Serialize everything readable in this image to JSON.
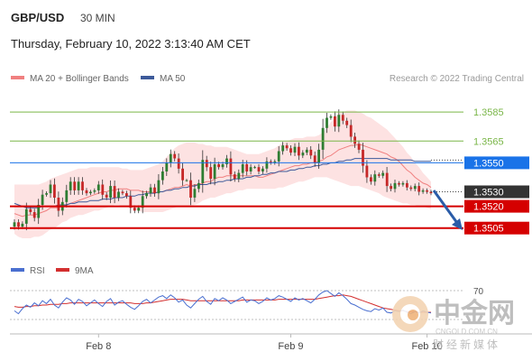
{
  "header": {
    "symbol": "GBP/USD",
    "timeframe": "30 MIN",
    "datetime": "Thursday, February 10, 2022 3:13:40 AM CET"
  },
  "legend": {
    "ma20_bb": "MA 20 + Bollinger Bands",
    "ma50": "MA 50",
    "rsi": "RSI",
    "rsi_ma": "9MA"
  },
  "credit": "Research © 2022 Trading Central",
  "watermark": {
    "name": "中金网",
    "url": "CNGOLD.COM.CN",
    "tagline": "财经新媒体"
  },
  "colors": {
    "ma20": "#f08080",
    "band_fill": "#fde2e2",
    "ma50": "#3d5a9a",
    "up": "#2e7d32",
    "down": "#c62828",
    "resistance": "#7ab648",
    "pivot": "#1a73e8",
    "support": "#d50000",
    "current": "#333333",
    "arrow": "#2a5ca8",
    "rsi": "#4a6fd0",
    "rsi_ma": "#d32f2f"
  },
  "chart_data": {
    "type": "candlestick",
    "interval": "30 MIN",
    "ylim": [
      1.3493,
      1.36
    ],
    "x_tick_labels": [
      "Feb 8",
      "Feb 9",
      "Feb 10"
    ],
    "levels": [
      {
        "value": 1.3585,
        "label": "1.3585",
        "kind": "resistance"
      },
      {
        "value": 1.3565,
        "label": "1.3565",
        "kind": "resistance"
      },
      {
        "value": 1.355,
        "label": "1.3550",
        "kind": "pivot"
      },
      {
        "value": 1.353,
        "label": "1.3530",
        "kind": "current"
      },
      {
        "value": 1.352,
        "label": "1.3520",
        "kind": "support"
      },
      {
        "value": 1.3505,
        "label": "1.3505",
        "kind": "support"
      }
    ],
    "close": [
      1.3509,
      1.3506,
      1.3508,
      1.3518,
      1.3516,
      1.3512,
      1.3521,
      1.3528,
      1.3529,
      1.3535,
      1.3526,
      1.3517,
      1.3523,
      1.3531,
      1.3537,
      1.3531,
      1.3537,
      1.3531,
      1.3529,
      1.353,
      1.3531,
      1.3535,
      1.3528,
      1.3526,
      1.3534,
      1.3526,
      1.353,
      1.3529,
      1.3527,
      1.3519,
      1.3517,
      1.3519,
      1.3527,
      1.3529,
      1.3533,
      1.3529,
      1.3538,
      1.3544,
      1.355,
      1.3556,
      1.3553,
      1.3546,
      1.3538,
      1.3538,
      1.3526,
      1.3532,
      1.3536,
      1.3552,
      1.3547,
      1.3539,
      1.3549,
      1.3547,
      1.3549,
      1.3553,
      1.3542,
      1.3539,
      1.3543,
      1.3549,
      1.3544,
      1.3547,
      1.3547,
      1.3544,
      1.3546,
      1.3551,
      1.355,
      1.3551,
      1.3558,
      1.3562,
      1.356,
      1.3557,
      1.3561,
      1.3555,
      1.3557,
      1.3559,
      1.3555,
      1.355,
      1.3559,
      1.3574,
      1.3581,
      1.3582,
      1.3575,
      1.3583,
      1.3579,
      1.3576,
      1.3568,
      1.3563,
      1.3559,
      1.3548,
      1.354,
      1.3537,
      1.3542,
      1.3541,
      1.3543,
      1.3534,
      1.3532,
      1.3536,
      1.3535,
      1.3536,
      1.3533,
      1.3532,
      1.3534,
      1.353,
      1.3531,
      1.353,
      1.3529
    ],
    "ma20": [
      1.3515,
      1.3514,
      1.3513,
      1.3514,
      1.3514,
      1.3514,
      1.3515,
      1.3516,
      1.3517,
      1.3519,
      1.3519,
      1.3519,
      1.352,
      1.3521,
      1.3522,
      1.3523,
      1.3524,
      1.3525,
      1.3526,
      1.3527,
      1.3528,
      1.3529,
      1.353,
      1.353,
      1.3531,
      1.3531,
      1.3532,
      1.3532,
      1.3532,
      1.3531,
      1.3531,
      1.3531,
      1.353,
      1.353,
      1.353,
      1.3529,
      1.353,
      1.353,
      1.3531,
      1.3532,
      1.3533,
      1.3533,
      1.3534,
      1.3535,
      1.3534,
      1.3535,
      1.3535,
      1.3536,
      1.3537,
      1.3537,
      1.3539,
      1.354,
      1.354,
      1.3541,
      1.3541,
      1.3541,
      1.3541,
      1.3541,
      1.3541,
      1.3541,
      1.3541,
      1.354,
      1.354,
      1.3541,
      1.3542,
      1.3543,
      1.3544,
      1.3545,
      1.3546,
      1.3547,
      1.3548,
      1.3548,
      1.3549,
      1.3549,
      1.355,
      1.355,
      1.3551,
      1.3552,
      1.3554,
      1.3555,
      1.3557,
      1.3559,
      1.356,
      1.3561,
      1.3562,
      1.3562,
      1.3563,
      1.3562,
      1.3561,
      1.356,
      1.3559,
      1.3558,
      1.3557,
      1.3556,
      1.3554,
      1.3553,
      1.3551,
      1.3548,
      1.3545,
      1.3543,
      1.354,
      1.3538,
      1.3536,
      1.3535,
      1.3533
    ],
    "bb_upper": [
      1.3535,
      1.3535,
      1.3535,
      1.3535,
      1.3535,
      1.3535,
      1.3535,
      1.3536,
      1.3537,
      1.3539,
      1.354,
      1.3541,
      1.3542,
      1.3543,
      1.3544,
      1.3545,
      1.3546,
      1.3546,
      1.3546,
      1.3547,
      1.3547,
      1.3547,
      1.3547,
      1.3547,
      1.3547,
      1.3547,
      1.3547,
      1.3546,
      1.3546,
      1.3545,
      1.3545,
      1.3545,
      1.3545,
      1.3546,
      1.3547,
      1.3548,
      1.3549,
      1.3551,
      1.3554,
      1.3557,
      1.356,
      1.3562,
      1.3563,
      1.3564,
      1.3564,
      1.3564,
      1.3563,
      1.3563,
      1.3562,
      1.3562,
      1.3561,
      1.3561,
      1.3561,
      1.3561,
      1.356,
      1.3559,
      1.3558,
      1.3557,
      1.3556,
      1.3556,
      1.3556,
      1.3556,
      1.3557,
      1.3558,
      1.3559,
      1.356,
      1.3562,
      1.3564,
      1.3565,
      1.3566,
      1.3567,
      1.3567,
      1.3567,
      1.3568,
      1.3568,
      1.3568,
      1.3569,
      1.3571,
      1.3574,
      1.3578,
      1.3581,
      1.3584,
      1.3585,
      1.3586,
      1.3586,
      1.3586,
      1.3585,
      1.3584,
      1.3582,
      1.3581,
      1.3579,
      1.3577,
      1.3575,
      1.3573,
      1.357,
      1.3567,
      1.3564,
      1.3561,
      1.3557,
      1.3554,
      1.355,
      1.3547,
      1.3543,
      1.354,
      1.3537
    ],
    "bb_lower": [
      1.3501,
      1.3499,
      1.3498,
      1.3498,
      1.3498,
      1.3499,
      1.3499,
      1.35,
      1.3502,
      1.3504,
      1.3505,
      1.3507,
      1.3509,
      1.351,
      1.3512,
      1.3513,
      1.3514,
      1.3514,
      1.3515,
      1.3516,
      1.3517,
      1.3517,
      1.3518,
      1.3519,
      1.352,
      1.3521,
      1.3521,
      1.352,
      1.352,
      1.3519,
      1.3518,
      1.3517,
      1.3516,
      1.3516,
      1.3516,
      1.3516,
      1.3516,
      1.3516,
      1.3517,
      1.3518,
      1.3519,
      1.352,
      1.352,
      1.352,
      1.352,
      1.3521,
      1.3522,
      1.3524,
      1.3525,
      1.3526,
      1.3526,
      1.3527,
      1.3528,
      1.3529,
      1.3529,
      1.353,
      1.3531,
      1.3531,
      1.3532,
      1.3532,
      1.3532,
      1.3532,
      1.3532,
      1.3532,
      1.3532,
      1.3532,
      1.3533,
      1.3533,
      1.3534,
      1.3535,
      1.3536,
      1.3537,
      1.3537,
      1.3538,
      1.3539,
      1.354,
      1.354,
      1.354,
      1.354,
      1.3539,
      1.3538,
      1.3537,
      1.3536,
      1.3535,
      1.3534,
      1.3534,
      1.3534,
      1.3533,
      1.3532,
      1.3531,
      1.353,
      1.3529,
      1.3527,
      1.3526,
      1.3525,
      1.3524,
      1.3523,
      1.3522,
      1.3522,
      1.3521,
      1.3521,
      1.352,
      1.352,
      1.3519,
      1.3518
    ],
    "ma50": [
      1.3522,
      1.3521,
      1.352,
      1.3519,
      1.3519,
      1.3519,
      1.3519,
      1.352,
      1.352,
      1.352,
      1.352,
      1.3521,
      1.3521,
      1.3521,
      1.3522,
      1.3522,
      1.3523,
      1.3523,
      1.3523,
      1.3524,
      1.3524,
      1.3524,
      1.3525,
      1.3525,
      1.3525,
      1.3526,
      1.3526,
      1.3526,
      1.3527,
      1.3527,
      1.3527,
      1.3528,
      1.3528,
      1.3529,
      1.3529,
      1.3529,
      1.353,
      1.353,
      1.3531,
      1.3531,
      1.3532,
      1.3532,
      1.3533,
      1.3533,
      1.3534,
      1.3534,
      1.3535,
      1.3535,
      1.3535,
      1.3536,
      1.3536,
      1.3537,
      1.3537,
      1.3538,
      1.3538,
      1.3539,
      1.3539,
      1.3539,
      1.354,
      1.354,
      1.3541,
      1.3541,
      1.3542,
      1.3542,
      1.3543,
      1.3543,
      1.3544,
      1.3544,
      1.3544,
      1.3545,
      1.3545,
      1.3546,
      1.3546,
      1.3547,
      1.3547,
      1.3548,
      1.3548,
      1.3549,
      1.3549,
      1.355,
      1.355,
      1.3551,
      1.3551,
      1.3552,
      1.3552,
      1.3553,
      1.3553,
      1.3553,
      1.3553,
      1.3553,
      1.3553,
      1.3553,
      1.3553,
      1.3553,
      1.3552,
      1.3552,
      1.3552,
      1.3552,
      1.3552,
      1.3552,
      1.3551,
      1.3551,
      1.3551,
      1.3551,
      1.3551
    ],
    "rsi_ylim": [
      20,
      80
    ],
    "rsi_ticks": [
      "70"
    ],
    "rsi": [
      42,
      38,
      45,
      50,
      47,
      53,
      49,
      56,
      52,
      58,
      50,
      46,
      54,
      60,
      57,
      51,
      58,
      55,
      49,
      53,
      57,
      52,
      48,
      55,
      59,
      50,
      54,
      56,
      51,
      47,
      44,
      49,
      55,
      58,
      53,
      57,
      61,
      63,
      59,
      64,
      60,
      54,
      57,
      50,
      46,
      52,
      58,
      62,
      55,
      51,
      59,
      56,
      60,
      57,
      52,
      55,
      58,
      61,
      54,
      57,
      56,
      52,
      55,
      60,
      57,
      59,
      63,
      61,
      58,
      55,
      60,
      57,
      59,
      56,
      53,
      58,
      64,
      68,
      70,
      66,
      62,
      67,
      63,
      58,
      52,
      50,
      47,
      44,
      42,
      41,
      45,
      43,
      46,
      40,
      39,
      42,
      41,
      43,
      40,
      38,
      41,
      39,
      42,
      40,
      39
    ],
    "rsi_ma": [
      48,
      47,
      47,
      48,
      48,
      49,
      49,
      50,
      50,
      51,
      51,
      51,
      52,
      52,
      53,
      53,
      53,
      53,
      53,
      53,
      53,
      53,
      53,
      53,
      53,
      53,
      53,
      53,
      53,
      53,
      52,
      52,
      52,
      53,
      53,
      54,
      55,
      56,
      57,
      58,
      58,
      58,
      58,
      57,
      56,
      56,
      56,
      56,
      56,
      56,
      56,
      56,
      56,
      56,
      56,
      56,
      56,
      57,
      57,
      57,
      57,
      57,
      57,
      57,
      57,
      57,
      58,
      58,
      58,
      58,
      58,
      58,
      58,
      58,
      58,
      58,
      59,
      60,
      61,
      62,
      63,
      63,
      64,
      63,
      62,
      60,
      58,
      56,
      54,
      52,
      50,
      48,
      46,
      45,
      44,
      43,
      42,
      42,
      41,
      41,
      41,
      40,
      40,
      40,
      40
    ]
  }
}
